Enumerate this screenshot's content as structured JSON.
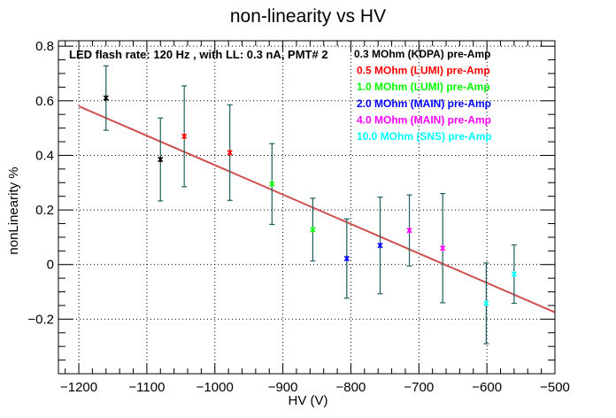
{
  "chart_data": {
    "type": "scatter",
    "title": "non-linearity vs HV",
    "xlabel": "HV (V)",
    "ylabel": "nonLinearity %",
    "xlim": [
      -1230,
      -500
    ],
    "ylim": [
      -0.4,
      0.82
    ],
    "x_ticks": [
      -1200,
      -1100,
      -1000,
      -900,
      -800,
      -700,
      -600,
      -500
    ],
    "x_tick_labels": [
      "−1200",
      "−1100",
      "−1000",
      "−900",
      "−800",
      "−700",
      "−600",
      "−500"
    ],
    "y_ticks": [
      -0.2,
      0,
      0.2,
      0.4,
      0.6,
      0.8
    ],
    "y_tick_labels": [
      "−0.2",
      "0",
      "0.2",
      "0.4",
      "0.6",
      "0.8"
    ],
    "grid": true,
    "info_text": "LED flash rate: 120 Hz , with LL: 0.3 nA, PMT# 2",
    "legend_position": "top-right",
    "series": [
      {
        "name": "0.3 MOhm (KDPA) pre-Amp",
        "color": "#000000",
        "points": [
          {
            "x": -1160,
            "y": 0.61,
            "err": 0.118
          },
          {
            "x": -1080,
            "y": 0.385,
            "err": 0.152
          }
        ]
      },
      {
        "name": "0.5 MOhm (LUMI) pre-Amp",
        "color": "#ff0000",
        "points": [
          {
            "x": -1045,
            "y": 0.47,
            "err": 0.185
          },
          {
            "x": -978,
            "y": 0.41,
            "err": 0.175
          }
        ]
      },
      {
        "name": "1.0 MOhm (LUMI) pre-Amp",
        "color": "#00ff00",
        "points": [
          {
            "x": -916,
            "y": 0.295,
            "err": 0.148
          },
          {
            "x": -856,
            "y": 0.128,
            "err": 0.115
          }
        ]
      },
      {
        "name": "2.0 MOhm (MAIN) pre-Amp",
        "color": "#0000ff",
        "points": [
          {
            "x": -806,
            "y": 0.022,
            "err": 0.145
          },
          {
            "x": -757,
            "y": 0.07,
            "err": 0.177
          }
        ]
      },
      {
        "name": "4.0 MOhm (MAIN) pre-Amp",
        "color": "#ff00ff",
        "points": [
          {
            "x": -714,
            "y": 0.125,
            "err": 0.13
          },
          {
            "x": -665,
            "y": 0.06,
            "err": 0.2
          }
        ]
      },
      {
        "name": "10.0 MOhm (SNS) pre-Amp",
        "color": "#00ffff",
        "points": [
          {
            "x": -601,
            "y": -0.142,
            "err": 0.148
          },
          {
            "x": -560,
            "y": -0.035,
            "err": 0.107
          }
        ]
      }
    ],
    "error_bar_color": "#1f5f5f",
    "fit_line": {
      "color": "#d05050",
      "x": [
        -1200,
        -500
      ],
      "y": [
        0.58,
        -0.175
      ]
    }
  }
}
